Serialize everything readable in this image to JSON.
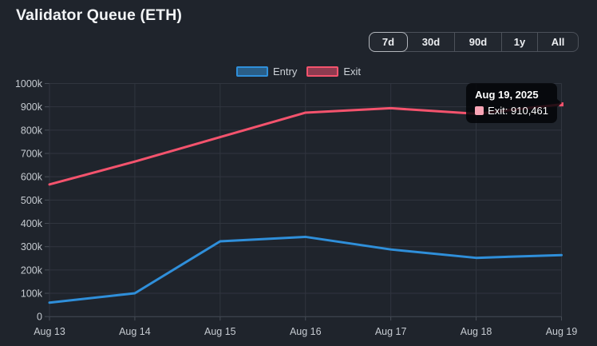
{
  "header": {
    "title": "Validator Queue (ETH)"
  },
  "range_buttons": [
    {
      "label": "7d",
      "active": true
    },
    {
      "label": "30d",
      "active": false
    },
    {
      "label": "90d",
      "active": false
    },
    {
      "label": "1y",
      "active": false
    },
    {
      "label": "All",
      "active": false
    }
  ],
  "legend": [
    {
      "label": "Entry",
      "color": "#2f8fda",
      "fill": "#2a5e87"
    },
    {
      "label": "Exit",
      "color": "#f4536d",
      "fill": "#8e3b50"
    }
  ],
  "tooltip": {
    "date": "Aug 19, 2025",
    "label": "Exit: 910,461",
    "series": "Exit",
    "value": "910,461",
    "swatch_color": "#f9a5b6"
  },
  "colors": {
    "background": "#1f242c",
    "gridline": "#30353f",
    "axis": "#474d57",
    "axis_text": "#c6cbd1",
    "entry_line": "#2f8fda",
    "exit_line": "#f4536d",
    "tooltip_bg": "rgba(4,5,8,0.85)"
  },
  "chart_data": {
    "type": "line",
    "title": "Validator Queue (ETH)",
    "x": [
      "Aug 13",
      "Aug 14",
      "Aug 15",
      "Aug 16",
      "Aug 17",
      "Aug 18",
      "Aug 19"
    ],
    "series": [
      {
        "name": "Entry",
        "color": "#2f8fda",
        "values": [
          60000,
          100000,
          323000,
          342000,
          288000,
          252000,
          264000
        ]
      },
      {
        "name": "Exit",
        "color": "#f4536d",
        "values": [
          567000,
          665000,
          770000,
          875000,
          894000,
          870000,
          910461
        ]
      }
    ],
    "xlabel": "",
    "ylabel": "",
    "ylim": [
      0,
      1000000
    ],
    "ytick_step": 100000,
    "ytick_labels": [
      "0",
      "100k",
      "200k",
      "300k",
      "400k",
      "500k",
      "600k",
      "700k",
      "800k",
      "900k",
      "1000k"
    ],
    "grid": true,
    "legend_position": "top-center",
    "highlight_point": {
      "series": "Exit",
      "x": "Aug 19",
      "value": 910461
    }
  }
}
